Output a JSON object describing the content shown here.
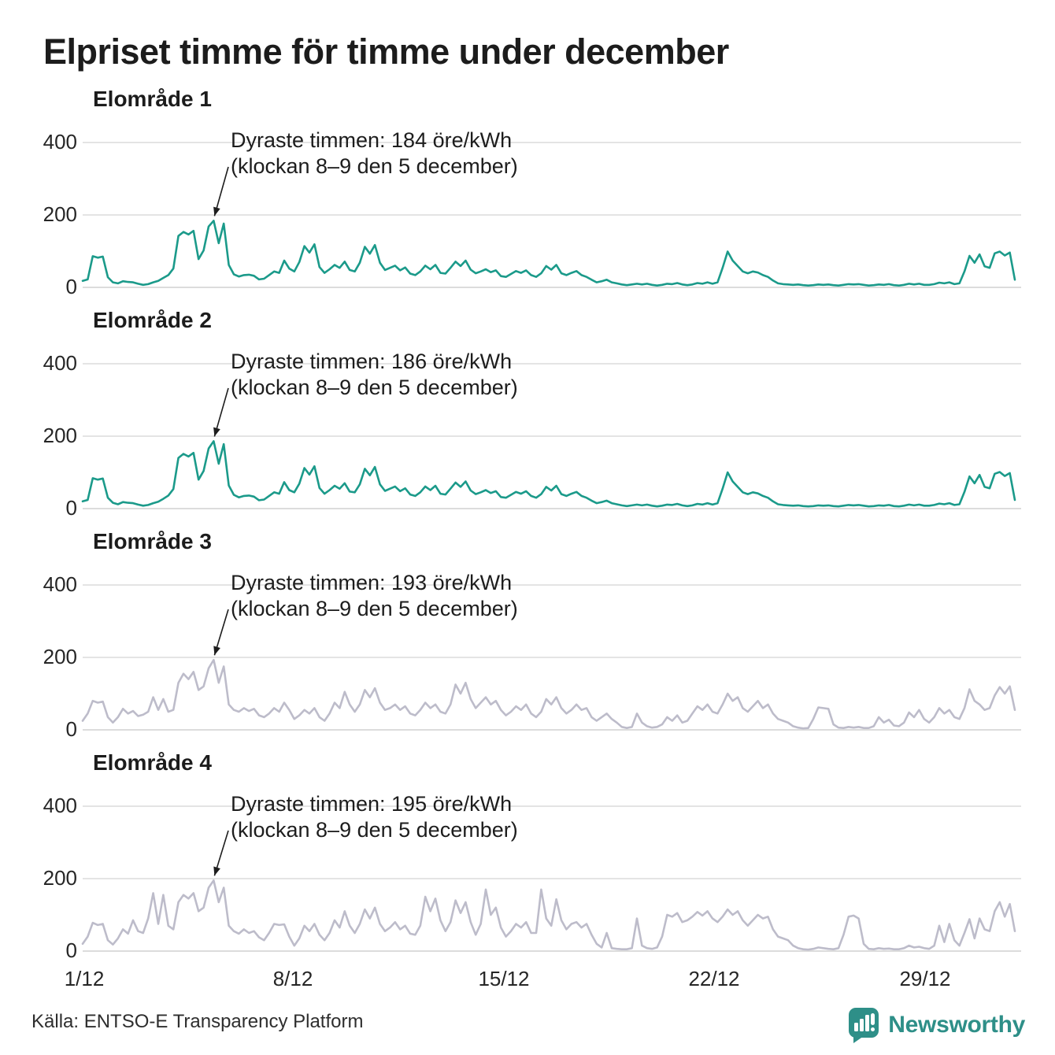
{
  "title": "Elpriset timme för timme under december",
  "source": "Källa: ENTSO-E Transparency Platform",
  "brand": {
    "name": "Newsworthy",
    "color": "#2e8f88"
  },
  "colors": {
    "teal_line": "#1b9a8a",
    "gray_line": "#bdbcca",
    "grid": "#e4e4e4",
    "zero_line": "#dcdcdc",
    "text": "#1d1d1d"
  },
  "axis": {
    "y_ticks": [
      400,
      200,
      0
    ],
    "ylim": [
      0,
      400
    ],
    "x_ticks": [
      "1/12",
      "8/12",
      "15/12",
      "22/12",
      "29/12"
    ],
    "x_unit": "datum i december (timvärden)",
    "y_unit": "öre/kWh"
  },
  "chart_data": [
    {
      "type": "line",
      "title": "Elområde 1",
      "annotation_line1": "Dyraste timmen: 184 öre/kWh",
      "annotation_line2": "(klockan 8–9 den 5 december)",
      "max_ore_per_kwh": 184,
      "max_time": "klockan 8–9 den 5 december",
      "color": "#1b9a8a",
      "days": [
        [
          18,
          22,
          86,
          82,
          85,
          28
        ],
        [
          14,
          11,
          17,
          15,
          14,
          10
        ],
        [
          7,
          9,
          14,
          18,
          26,
          34
        ],
        [
          52,
          142,
          153,
          146,
          156,
          78
        ],
        [
          102,
          168,
          184,
          122,
          176,
          62
        ],
        [
          36,
          30,
          34,
          35,
          32,
          22
        ],
        [
          24,
          34,
          44,
          40,
          74,
          52
        ],
        [
          44,
          70,
          114,
          96,
          119,
          56
        ],
        [
          40,
          50,
          62,
          54,
          71,
          48
        ],
        [
          44,
          68,
          112,
          93,
          117,
          68
        ],
        [
          48,
          54,
          60,
          47,
          55,
          38
        ],
        [
          34,
          44,
          60,
          50,
          62,
          40
        ],
        [
          38,
          54,
          71,
          59,
          74,
          49
        ],
        [
          39,
          44,
          50,
          42,
          47,
          31
        ],
        [
          29,
          37,
          45,
          40,
          47,
          34
        ],
        [
          29,
          39,
          59,
          49,
          62,
          39
        ],
        [
          34,
          40,
          45,
          34,
          29,
          21
        ],
        [
          14,
          17,
          21,
          14,
          11,
          8
        ],
        [
          6,
          8,
          10,
          8,
          10,
          7
        ],
        [
          5,
          7,
          10,
          9,
          12,
          8
        ],
        [
          6,
          8,
          12,
          10,
          14,
          10
        ],
        [
          14,
          54,
          99,
          74,
          59,
          44
        ],
        [
          39,
          44,
          41,
          34,
          29,
          19
        ],
        [
          11,
          9,
          8,
          7,
          8,
          6
        ],
        [
          5,
          6,
          8,
          7,
          8,
          6
        ],
        [
          5,
          7,
          9,
          8,
          9,
          7
        ],
        [
          5,
          6,
          8,
          7,
          9,
          6
        ],
        [
          5,
          7,
          10,
          8,
          10,
          7
        ],
        [
          7,
          9,
          13,
          11,
          14,
          9
        ],
        [
          11,
          44,
          87,
          68,
          91,
          58
        ],
        [
          54,
          94,
          99,
          88,
          96,
          21
        ]
      ]
    },
    {
      "type": "line",
      "title": "Elområde 2",
      "annotation_line1": "Dyraste timmen: 186 öre/kWh",
      "annotation_line2": "(klockan 8–9 den 5 december)",
      "max_ore_per_kwh": 186,
      "max_time": "klockan 8–9 den 5 december",
      "color": "#1b9a8a",
      "days": [
        [
          20,
          24,
          84,
          80,
          83,
          30
        ],
        [
          16,
          12,
          18,
          16,
          15,
          11
        ],
        [
          8,
          10,
          15,
          19,
          27,
          36
        ],
        [
          54,
          140,
          151,
          144,
          154,
          80
        ],
        [
          104,
          166,
          186,
          124,
          178,
          64
        ],
        [
          38,
          31,
          35,
          36,
          33,
          23
        ],
        [
          25,
          35,
          45,
          41,
          73,
          51
        ],
        [
          45,
          69,
          112,
          94,
          117,
          57
        ],
        [
          41,
          51,
          63,
          55,
          70,
          47
        ],
        [
          45,
          67,
          110,
          92,
          115,
          67
        ],
        [
          49,
          55,
          61,
          48,
          56,
          39
        ],
        [
          35,
          45,
          61,
          51,
          63,
          41
        ],
        [
          39,
          55,
          72,
          60,
          75,
          50
        ],
        [
          40,
          45,
          51,
          43,
          48,
          32
        ],
        [
          30,
          38,
          46,
          41,
          48,
          35
        ],
        [
          30,
          40,
          60,
          50,
          63,
          40
        ],
        [
          35,
          41,
          46,
          35,
          30,
          22
        ],
        [
          15,
          18,
          22,
          15,
          12,
          9
        ],
        [
          7,
          9,
          11,
          9,
          11,
          8
        ],
        [
          6,
          8,
          11,
          10,
          13,
          9
        ],
        [
          7,
          9,
          13,
          11,
          15,
          11
        ],
        [
          15,
          55,
          100,
          75,
          60,
          45
        ],
        [
          40,
          45,
          42,
          35,
          30,
          20
        ],
        [
          12,
          10,
          9,
          8,
          9,
          7
        ],
        [
          6,
          7,
          9,
          8,
          9,
          7
        ],
        [
          6,
          8,
          10,
          9,
          10,
          8
        ],
        [
          6,
          7,
          9,
          8,
          10,
          7
        ],
        [
          6,
          8,
          11,
          9,
          11,
          8
        ],
        [
          8,
          10,
          14,
          12,
          15,
          10
        ],
        [
          12,
          46,
          89,
          70,
          93,
          60
        ],
        [
          56,
          96,
          101,
          90,
          98,
          24
        ]
      ]
    },
    {
      "type": "line",
      "title": "Elområde 3",
      "annotation_line1": "Dyraste timmen: 193 öre/kWh",
      "annotation_line2": "(klockan 8–9 den 5 december)",
      "max_ore_per_kwh": 193,
      "max_time": "klockan 8–9 den 5 december",
      "color": "#bdbcca",
      "days": [
        [
          25,
          45,
          80,
          75,
          78,
          35
        ],
        [
          20,
          35,
          58,
          45,
          52,
          38
        ],
        [
          42,
          50,
          90,
          55,
          85,
          50
        ],
        [
          55,
          130,
          155,
          140,
          160,
          110
        ],
        [
          120,
          170,
          193,
          130,
          175,
          70
        ],
        [
          55,
          50,
          60,
          52,
          58,
          40
        ],
        [
          35,
          45,
          60,
          50,
          75,
          55
        ],
        [
          30,
          40,
          55,
          45,
          60,
          35
        ],
        [
          25,
          45,
          75,
          60,
          105,
          70
        ],
        [
          50,
          70,
          110,
          90,
          115,
          75
        ],
        [
          55,
          60,
          70,
          55,
          65,
          45
        ],
        [
          40,
          55,
          75,
          60,
          70,
          50
        ],
        [
          45,
          70,
          125,
          100,
          130,
          85
        ],
        [
          60,
          75,
          90,
          70,
          80,
          55
        ],
        [
          40,
          50,
          65,
          55,
          70,
          45
        ],
        [
          35,
          50,
          85,
          70,
          90,
          60
        ],
        [
          45,
          55,
          70,
          55,
          60,
          35
        ],
        [
          25,
          35,
          45,
          30,
          20,
          8
        ],
        [
          5,
          8,
          45,
          20,
          10,
          6
        ],
        [
          8,
          15,
          35,
          25,
          40,
          20
        ],
        [
          25,
          45,
          65,
          55,
          70,
          50
        ],
        [
          45,
          70,
          100,
          80,
          90,
          60
        ],
        [
          50,
          65,
          80,
          60,
          70,
          45
        ],
        [
          30,
          25,
          20,
          10,
          6,
          4
        ],
        [
          5,
          30,
          62,
          60,
          58,
          15
        ],
        [
          6,
          5,
          8,
          6,
          8,
          5
        ],
        [
          5,
          10,
          35,
          20,
          28,
          12
        ],
        [
          10,
          20,
          48,
          35,
          55,
          30
        ],
        [
          20,
          35,
          60,
          45,
          55,
          35
        ],
        [
          30,
          60,
          112,
          80,
          70,
          55
        ],
        [
          60,
          95,
          118,
          100,
          120,
          55
        ]
      ]
    },
    {
      "type": "line",
      "title": "Elområde 4",
      "annotation_line1": "Dyraste timmen: 195 öre/kWh",
      "annotation_line2": "(klockan 8–9 den 5 december)",
      "max_ore_per_kwh": 195,
      "max_time": "klockan 8–9 den 5 december",
      "color": "#bdbcca",
      "days": [
        [
          20,
          40,
          78,
          72,
          75,
          30
        ],
        [
          18,
          35,
          60,
          48,
          85,
          55
        ],
        [
          50,
          90,
          160,
          75,
          155,
          70
        ],
        [
          60,
          135,
          155,
          145,
          160,
          110
        ],
        [
          120,
          175,
          195,
          135,
          175,
          70
        ],
        [
          55,
          48,
          60,
          50,
          55,
          38
        ],
        [
          30,
          50,
          75,
          72,
          74,
          40
        ],
        [
          15,
          35,
          70,
          55,
          75,
          45
        ],
        [
          30,
          50,
          85,
          65,
          110,
          70
        ],
        [
          50,
          75,
          115,
          90,
          120,
          75
        ],
        [
          55,
          65,
          80,
          60,
          70,
          48
        ],
        [
          45,
          70,
          150,
          110,
          145,
          85
        ],
        [
          55,
          80,
          140,
          105,
          135,
          80
        ],
        [
          45,
          75,
          170,
          100,
          120,
          65
        ],
        [
          40,
          55,
          75,
          65,
          80,
          50
        ],
        [
          50,
          170,
          90,
          70,
          143,
          85
        ],
        [
          60,
          75,
          80,
          65,
          75,
          45
        ],
        [
          20,
          10,
          50,
          8,
          6,
          5
        ],
        [
          5,
          8,
          90,
          15,
          8,
          6
        ],
        [
          10,
          40,
          100,
          95,
          105,
          80
        ],
        [
          85,
          95,
          108,
          98,
          110,
          90
        ],
        [
          80,
          95,
          115,
          100,
          110,
          85
        ],
        [
          70,
          85,
          100,
          90,
          95,
          60
        ],
        [
          40,
          35,
          30,
          15,
          8,
          5
        ],
        [
          4,
          6,
          10,
          8,
          6,
          5
        ],
        [
          8,
          45,
          95,
          98,
          90,
          20
        ],
        [
          6,
          5,
          8,
          6,
          7,
          5
        ],
        [
          5,
          8,
          15,
          10,
          12,
          8
        ],
        [
          6,
          15,
          70,
          25,
          75,
          30
        ],
        [
          15,
          50,
          88,
          35,
          90,
          60
        ],
        [
          55,
          110,
          135,
          95,
          130,
          55
        ]
      ]
    }
  ]
}
